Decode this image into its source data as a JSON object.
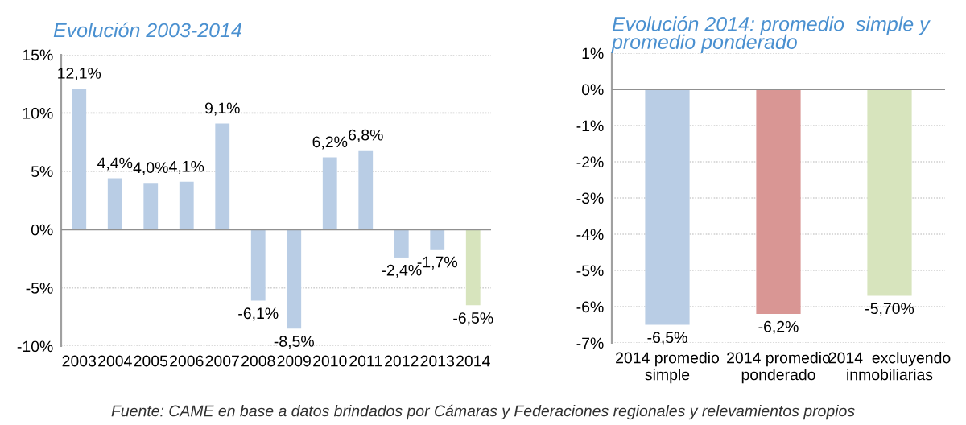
{
  "chart_data": [
    {
      "type": "bar",
      "title": "Evolución 2003-2014",
      "categories": [
        "2003",
        "2004",
        "2005",
        "2006",
        "2007",
        "2008",
        "2009",
        "2010",
        "2011",
        "2012",
        "2013",
        "2014"
      ],
      "values": [
        12.1,
        4.4,
        4.0,
        4.1,
        9.1,
        -6.1,
        -8.5,
        6.2,
        6.8,
        -2.4,
        -1.7,
        -6.5
      ],
      "colors": [
        "#b9cde5",
        "#b9cde5",
        "#b9cde5",
        "#b9cde5",
        "#b9cde5",
        "#b9cde5",
        "#b9cde5",
        "#b9cde5",
        "#b9cde5",
        "#b9cde5",
        "#b9cde5",
        "#d7e4bd"
      ],
      "value_labels": [
        "12,1%",
        "4,4%",
        "4,0%",
        "4,1%",
        "9,1%",
        "-6,1%",
        "-8,5%",
        "6,2%",
        "6,8%",
        "-2,4%",
        "-1,7%",
        "-6,5%"
      ],
      "ylim": [
        -10,
        15
      ],
      "yticks": [
        {
          "value": -10,
          "label": "-10%"
        },
        {
          "value": -5,
          "label": "-5%"
        },
        {
          "value": 0,
          "label": "0%"
        },
        {
          "value": 5,
          "label": "5%"
        },
        {
          "value": 10,
          "label": "10%"
        },
        {
          "value": 15,
          "label": "15%"
        }
      ],
      "grid": "y",
      "annotations": [
        "Fuente: CAME en base a datos brindados por Cámaras y Federaciones regionales y relevamientos propios"
      ]
    },
    {
      "type": "bar",
      "title": "Evolución 2014: promedio  simple y\npromedio ponderado",
      "categories": [
        "2014 promedio\nsimple",
        "2014 promedio\nponderado",
        "2014  excluyendo\ninmobiliarias"
      ],
      "values": [
        -6.5,
        -6.2,
        -5.7
      ],
      "colors": [
        "#b9cde5",
        "#d99694",
        "#d7e4bd"
      ],
      "value_labels": [
        "-6,5%",
        "-6,2%",
        "-5,70%"
      ],
      "ylim": [
        -7,
        1
      ],
      "yticks": [
        {
          "value": -7,
          "label": "-7%"
        },
        {
          "value": -6,
          "label": "-6%"
        },
        {
          "value": -5,
          "label": "-5%"
        },
        {
          "value": -4,
          "label": "-4%"
        },
        {
          "value": -3,
          "label": "-3%"
        },
        {
          "value": -2,
          "label": "-2%"
        },
        {
          "value": -1,
          "label": "-1%"
        },
        {
          "value": 0,
          "label": "0%"
        },
        {
          "value": 1,
          "label": "1%"
        }
      ],
      "grid": "y"
    }
  ]
}
